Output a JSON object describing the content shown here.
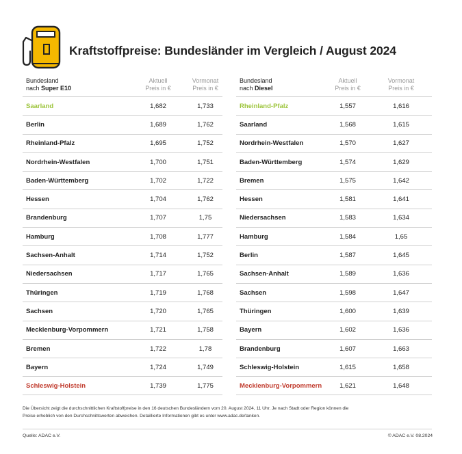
{
  "title": "Kraftstoffpreise: Bundesländer im Vergleich / August 2024",
  "icon": "fuel-pump-icon",
  "colors": {
    "accent": "#f5b800",
    "best": "#9cc43a",
    "worst": "#c0392b"
  },
  "e10": {
    "header_line1": "Bundesland",
    "header_line2_prefix": "nach ",
    "header_line2_bold": "Super E10",
    "col_current_1": "Aktuell",
    "col_current_2": "Preis in €",
    "col_prev_1": "Vormonat",
    "col_prev_2": "Preis in €",
    "rows": [
      {
        "state": "Saarland",
        "current": "1,682",
        "prev": "1,733"
      },
      {
        "state": "Berlin",
        "current": "1,689",
        "prev": "1,762"
      },
      {
        "state": "Rheinland-Pfalz",
        "current": "1,695",
        "prev": "1,752"
      },
      {
        "state": "Nordrhein-Westfalen",
        "current": "1,700",
        "prev": "1,751"
      },
      {
        "state": "Baden-Württemberg",
        "current": "1,702",
        "prev": "1,722"
      },
      {
        "state": "Hessen",
        "current": "1,704",
        "prev": "1,762"
      },
      {
        "state": "Brandenburg",
        "current": "1,707",
        "prev": "1,75"
      },
      {
        "state": "Hamburg",
        "current": "1,708",
        "prev": "1,777"
      },
      {
        "state": "Sachsen-Anhalt",
        "current": "1,714",
        "prev": "1,752"
      },
      {
        "state": "Niedersachsen",
        "current": "1,717",
        "prev": "1,765"
      },
      {
        "state": "Thüringen",
        "current": "1,719",
        "prev": "1,768"
      },
      {
        "state": "Sachsen",
        "current": "1,720",
        "prev": "1,765"
      },
      {
        "state": "Mecklenburg-Vorpommern",
        "current": "1,721",
        "prev": "1,758"
      },
      {
        "state": "Bremen",
        "current": "1,722",
        "prev": "1,78"
      },
      {
        "state": "Bayern",
        "current": "1,724",
        "prev": "1,749"
      },
      {
        "state": "Schleswig-Holstein",
        "current": "1,739",
        "prev": "1,775"
      }
    ]
  },
  "diesel": {
    "header_line1": "Bundesland",
    "header_line2_prefix": "nach ",
    "header_line2_bold": "Diesel",
    "col_current_1": "Aktuell",
    "col_current_2": "Preis in €",
    "col_prev_1": "Vormonat",
    "col_prev_2": "Preis in €",
    "rows": [
      {
        "state": "Rheinland-Pfalz",
        "current": "1,557",
        "prev": "1,616"
      },
      {
        "state": "Saarland",
        "current": "1,568",
        "prev": "1,615"
      },
      {
        "state": "Nordrhein-Westfalen",
        "current": "1,570",
        "prev": "1,627"
      },
      {
        "state": "Baden-Württemberg",
        "current": "1,574",
        "prev": "1,629"
      },
      {
        "state": "Bremen",
        "current": "1,575",
        "prev": "1,642"
      },
      {
        "state": "Hessen",
        "current": "1,581",
        "prev": "1,641"
      },
      {
        "state": "Niedersachsen",
        "current": "1,583",
        "prev": "1,634"
      },
      {
        "state": "Hamburg",
        "current": "1,584",
        "prev": "1,65"
      },
      {
        "state": "Berlin",
        "current": "1,587",
        "prev": "1,645"
      },
      {
        "state": "Sachsen-Anhalt",
        "current": "1,589",
        "prev": "1,636"
      },
      {
        "state": "Sachsen",
        "current": "1,598",
        "prev": "1,647"
      },
      {
        "state": "Thüringen",
        "current": "1,600",
        "prev": "1,639"
      },
      {
        "state": "Bayern",
        "current": "1,602",
        "prev": "1,636"
      },
      {
        "state": "Brandenburg",
        "current": "1,607",
        "prev": "1,663"
      },
      {
        "state": "Schleswig-Holstein",
        "current": "1,615",
        "prev": "1,658"
      },
      {
        "state": "Mecklenburg-Vorpommern",
        "current": "1,621",
        "prev": "1,648"
      }
    ]
  },
  "footnote_line1": "Die Übersicht zeigt die durchschnittlichen Kraftstoffpreise in den 16 deutschen Bundesländern vom 20. August 2024, 11 Uhr. Je nach Stadt oder Region können die",
  "footnote_line2": "Preise erheblich von den Durchschnittswerten abweichen. Detaillierte Informationen gibt es unter www.adac.de/tanken.",
  "source": "Quelle: ADAC e.V.",
  "copyright": "© ADAC e.V. 08.2024"
}
